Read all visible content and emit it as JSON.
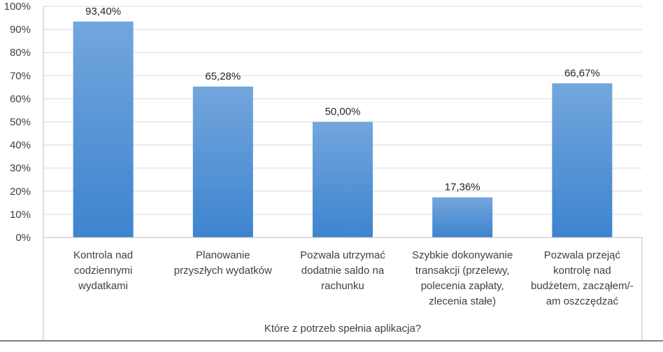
{
  "chart_data": {
    "type": "bar",
    "title": "",
    "xlabel": "Które z potrzeb spełnia aplikacja?",
    "ylabel": "",
    "ylim": [
      0,
      100
    ],
    "yticks": [
      "0%",
      "10%",
      "20%",
      "30%",
      "40%",
      "50%",
      "60%",
      "70%",
      "80%",
      "90%",
      "100%"
    ],
    "grid": true,
    "legend": "none",
    "categories": [
      [
        "Kontrola nad",
        "codziennymi",
        "wydatkami"
      ],
      [
        "Planowanie",
        "przyszłych wydatków"
      ],
      [
        "Pozwala utrzymać",
        "dodatnie saldo na",
        "rachunku"
      ],
      [
        "Szybkie dokonywanie",
        "transakcji (przelewy,",
        "polecenia zapłaty,",
        "zlecenia stałe)"
      ],
      [
        "Pozwala przejąć",
        "kontrolę nad",
        "budżetem, zacząłem/-",
        "am oszczędzać"
      ]
    ],
    "values": [
      93.4,
      65.28,
      50.0,
      17.36,
      66.67
    ],
    "data_labels": [
      "93,40%",
      "65,28%",
      "50,00%",
      "17,36%",
      "66,67%"
    ],
    "bar_color_top": "#73a6dd",
    "bar_color_bottom": "#3d84cf",
    "grid_color": "#d9d9d9",
    "axis_color": "#bfbfbf"
  }
}
